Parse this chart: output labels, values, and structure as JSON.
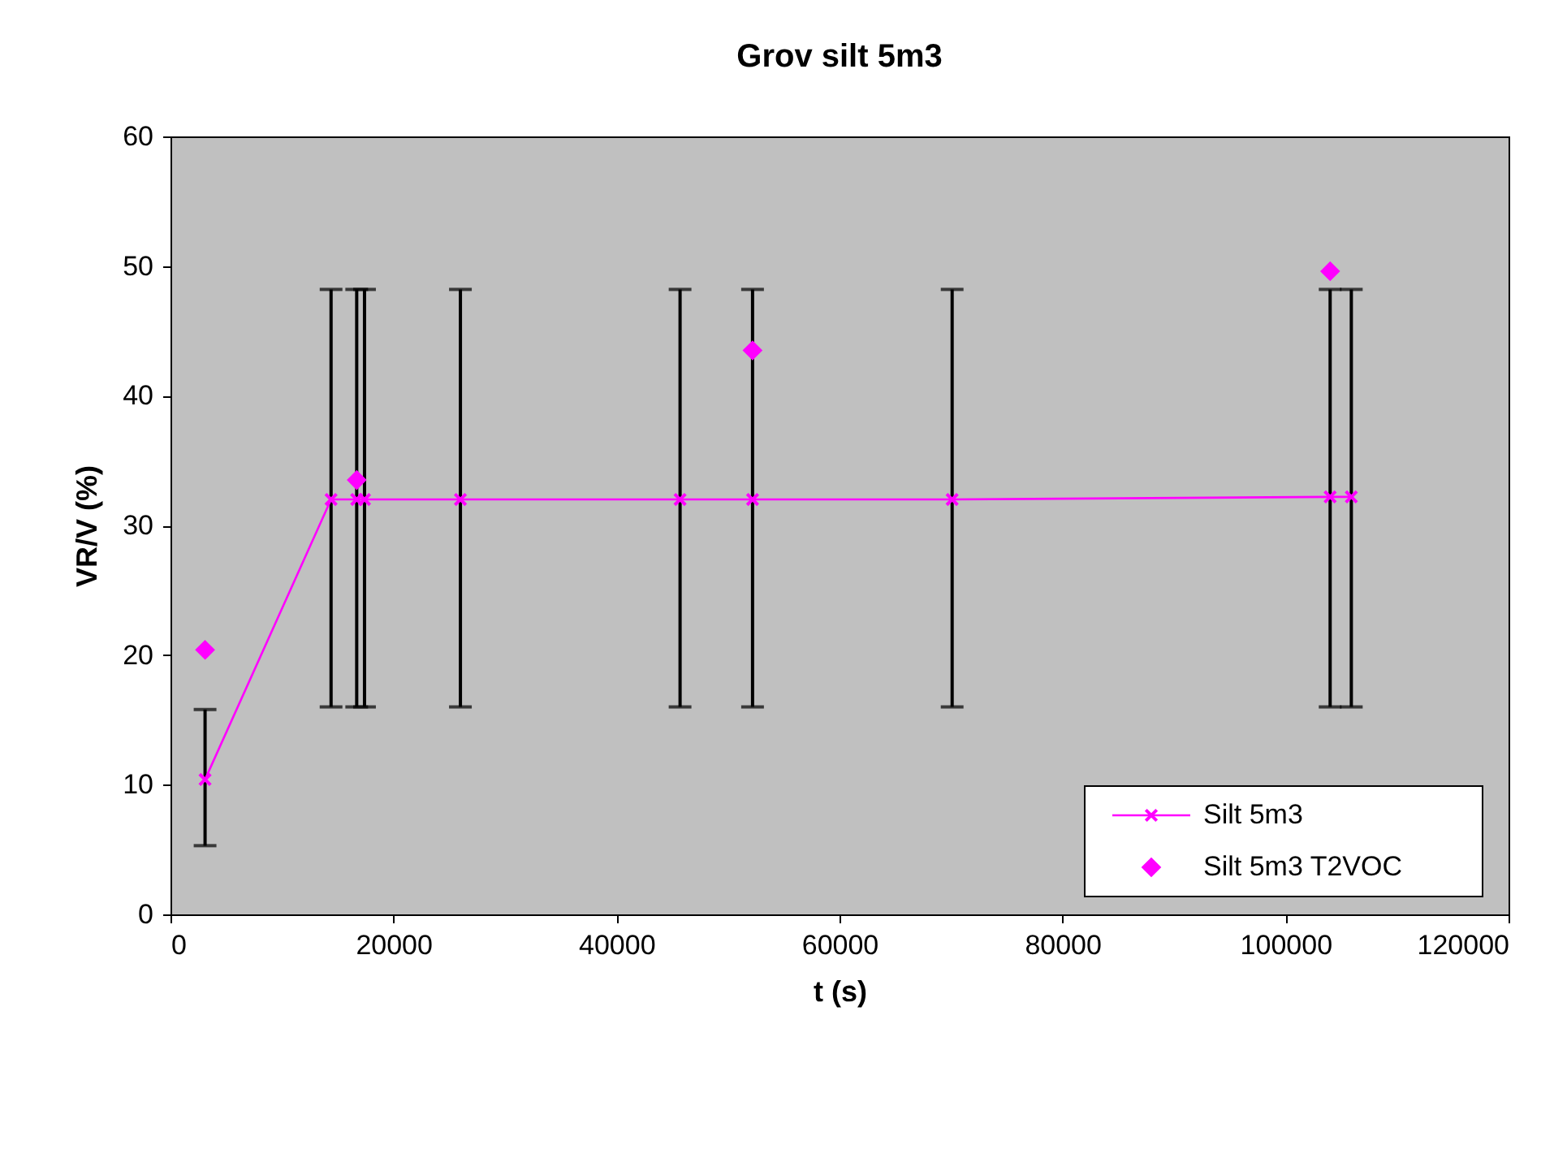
{
  "chart_data": {
    "type": "line",
    "title": "Grov silt 5m3",
    "xlabel": "t (s)",
    "ylabel": "VR/V (%)",
    "xlim": [
      0,
      120000
    ],
    "xticks": [
      0,
      20000,
      40000,
      60000,
      80000,
      100000,
      120000
    ],
    "ylim": [
      0,
      60
    ],
    "yticks": [
      0,
      10,
      20,
      30,
      40,
      50,
      60
    ],
    "grid": false,
    "legend": "bottom right",
    "series": [
      {
        "name": "Silt 5m3",
        "color": "#ff00ff",
        "marker": "cross",
        "line_style": "solid",
        "x": [
          3100,
          14400,
          16700,
          17400,
          26000,
          45700,
          52200,
          70100,
          104000,
          105900
        ],
        "values": [
          10.4,
          32.0,
          32.0,
          32.0,
          32.0,
          32.0,
          32.0,
          32.0,
          32.2,
          32.2
        ],
        "errors": [
          [
            5.3,
            15.8
          ],
          [
            16.0,
            48.2
          ],
          [
            16.0,
            48.2
          ],
          [
            16.0,
            48.2
          ],
          [
            16.0,
            48.2
          ],
          [
            16.0,
            48.2
          ],
          [
            16.0,
            48.2
          ],
          [
            16.0,
            48.2
          ],
          [
            16.0,
            48.2
          ],
          [
            16.0,
            48.2
          ]
        ]
      },
      {
        "name": "Silt 5m3 T2VOC",
        "type": "scatter",
        "color": "#ff00ff",
        "marker": "diamond",
        "x": [
          3100,
          16700,
          52200,
          104000
        ],
        "values": [
          20.4,
          33.5,
          43.5,
          49.6
        ]
      }
    ]
  }
}
